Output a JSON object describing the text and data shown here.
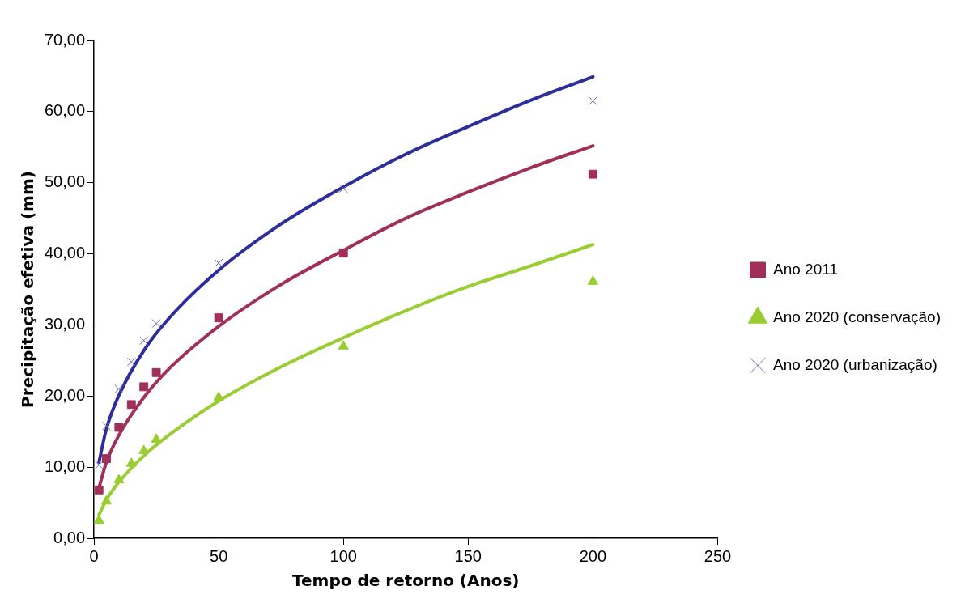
{
  "chart_data": {
    "type": "scatter",
    "xlabel": "Tempo de retorno (Anos)",
    "ylabel": "Precipitação efetiva (mm)",
    "xlim": [
      0,
      250
    ],
    "xticks": [
      0,
      50,
      100,
      150,
      200,
      250
    ],
    "ylim": [
      0,
      70
    ],
    "yticks": [
      {
        "value": 0,
        "label": "0,00"
      },
      {
        "value": 10,
        "label": "10,00"
      },
      {
        "value": 20,
        "label": "20,00"
      },
      {
        "value": 30,
        "label": "30,00"
      },
      {
        "value": 40,
        "label": "40,00"
      },
      {
        "value": 50,
        "label": "50,00"
      },
      {
        "value": 60,
        "label": "60,00"
      },
      {
        "value": 70,
        "label": "70,00"
      }
    ],
    "grid": false,
    "legend": "right",
    "series": [
      {
        "name": "Ano 2011",
        "type": "scatter",
        "marker": "square",
        "color": "#a0305a",
        "x": [
          2,
          5,
          10,
          15,
          20,
          25,
          50,
          100,
          200
        ],
        "values": [
          6.8,
          11.2,
          15.6,
          18.8,
          21.3,
          23.3,
          31.0,
          40.1,
          51.2
        ]
      },
      {
        "name": "Ano 2020 (conservação)",
        "type": "scatter",
        "marker": "triangle",
        "color": "#9acd32",
        "x": [
          2,
          5,
          10,
          15,
          20,
          25,
          50,
          100,
          200
        ],
        "values": [
          2.5,
          5.2,
          8.2,
          10.5,
          12.3,
          13.9,
          19.8,
          27.0,
          36.1
        ]
      },
      {
        "name": "Ano 2020 (urbanização)",
        "type": "scatter",
        "marker": "cross",
        "color": "#6a6aa8",
        "x": [
          2,
          5,
          10,
          15,
          20,
          25,
          50,
          100,
          200
        ],
        "values": [
          10.3,
          15.8,
          21.0,
          24.8,
          27.8,
          30.2,
          38.7,
          49.2,
          61.5
        ]
      },
      {
        "type": "line",
        "marker": "none",
        "color": "#a0305a",
        "x": [
          2,
          5,
          10,
          20,
          30,
          50,
          75,
          100,
          125,
          150,
          175,
          200
        ],
        "values": [
          7.1,
          10.7,
          14.5,
          19.8,
          23.8,
          29.8,
          35.7,
          40.5,
          45.0,
          48.7,
          52.1,
          55.2
        ]
      },
      {
        "type": "line",
        "marker": "none",
        "color": "#9acd32",
        "x": [
          2,
          5,
          10,
          20,
          30,
          50,
          75,
          100,
          125,
          150,
          175,
          200
        ],
        "values": [
          3.3,
          5.4,
          7.9,
          11.6,
          14.5,
          19.3,
          24.1,
          28.2,
          32.0,
          35.4,
          38.3,
          41.3
        ]
      },
      {
        "type": "line",
        "marker": "none",
        "color": "#2e2e9a",
        "x": [
          2,
          5,
          10,
          20,
          30,
          50,
          75,
          100,
          125,
          150,
          175,
          200
        ],
        "values": [
          10.7,
          15.4,
          20.1,
          26.4,
          30.9,
          37.7,
          44.2,
          49.4,
          54.0,
          57.9,
          61.6,
          64.9
        ]
      }
    ]
  }
}
